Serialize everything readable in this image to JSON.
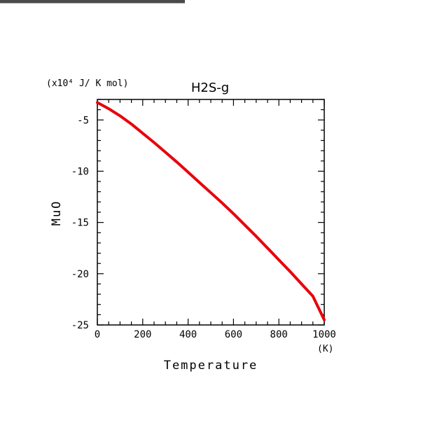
{
  "chart_data": {
    "type": "line",
    "title": "H2S-g",
    "xlabel": "Temperature",
    "ylabel": "MuO",
    "x_unit": "(K)",
    "y_unit": "(x10⁴ J/ K mol)",
    "xlim": [
      0,
      1000
    ],
    "ylim": [
      -25,
      -3
    ],
    "x_ticks": [
      0,
      200,
      400,
      600,
      800,
      1000
    ],
    "x_tick_labels": [
      "0",
      "200",
      "400",
      "600",
      "800",
      "1000"
    ],
    "y_ticks": [
      -5,
      -10,
      -15,
      -20,
      -25
    ],
    "y_tick_labels": [
      "-5",
      "-10",
      "-15",
      "-20",
      "-25"
    ],
    "grid": false,
    "series": [
      {
        "color": "#e8000b",
        "x": [
          0,
          50,
          100,
          150,
          200,
          250,
          300,
          350,
          400,
          450,
          500,
          550,
          600,
          650,
          700,
          750,
          800,
          850,
          900,
          950,
          1000
        ],
        "y": [
          -3.3,
          -3.9,
          -4.6,
          -5.4,
          -6.3,
          -7.2,
          -8.15,
          -9.1,
          -10.1,
          -11.1,
          -12.1,
          -13.1,
          -14.15,
          -15.25,
          -16.35,
          -17.5,
          -18.65,
          -19.8,
          -21.0,
          -22.2,
          -24.5
        ]
      }
    ]
  }
}
